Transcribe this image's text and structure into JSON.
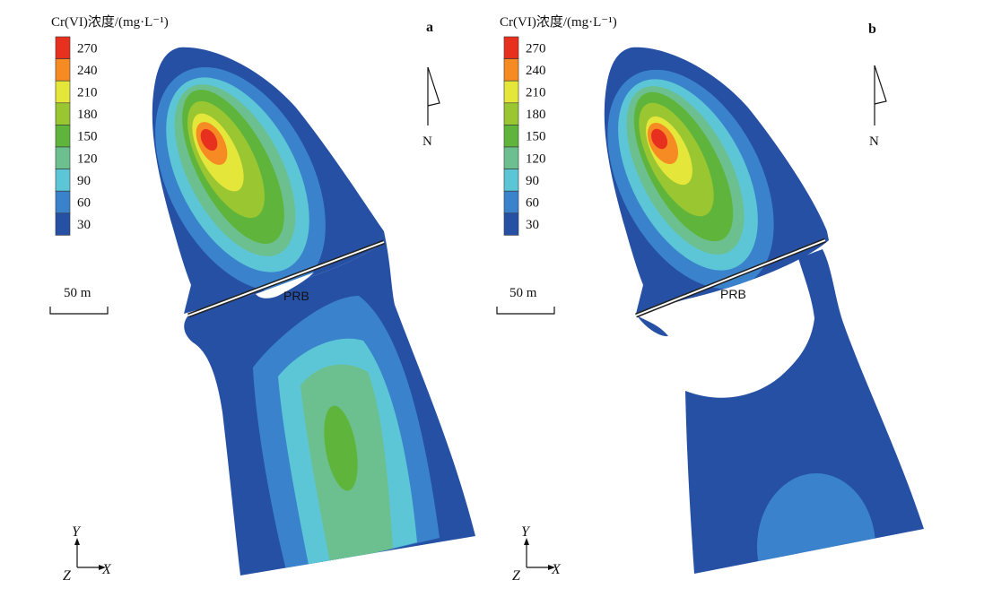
{
  "legend": {
    "title": "Cr(VI)浓度/(mg·L⁻¹)",
    "levels": [
      {
        "label": "270",
        "color": "#e8301e"
      },
      {
        "label": "240",
        "color": "#f58b22"
      },
      {
        "label": "210",
        "color": "#e5e63a"
      },
      {
        "label": "180",
        "color": "#9ac631"
      },
      {
        "label": "150",
        "color": "#5fb53b"
      },
      {
        "label": "120",
        "color": "#6cc08f"
      },
      {
        "label": "90",
        "color": "#5cc6d6"
      },
      {
        "label": "60",
        "color": "#3a83cc"
      },
      {
        "label": "30",
        "color": "#2650a4"
      }
    ]
  },
  "panels": [
    {
      "letter": "a",
      "north": "N",
      "scale": "50 m",
      "barrier": "PRB",
      "axes": {
        "y": "Y",
        "z": "Z",
        "x": "X"
      }
    },
    {
      "letter": "b",
      "north": "N",
      "scale": "50 m",
      "barrier": "PRB",
      "axes": {
        "y": "Y",
        "z": "Z",
        "x": "X"
      }
    }
  ]
}
